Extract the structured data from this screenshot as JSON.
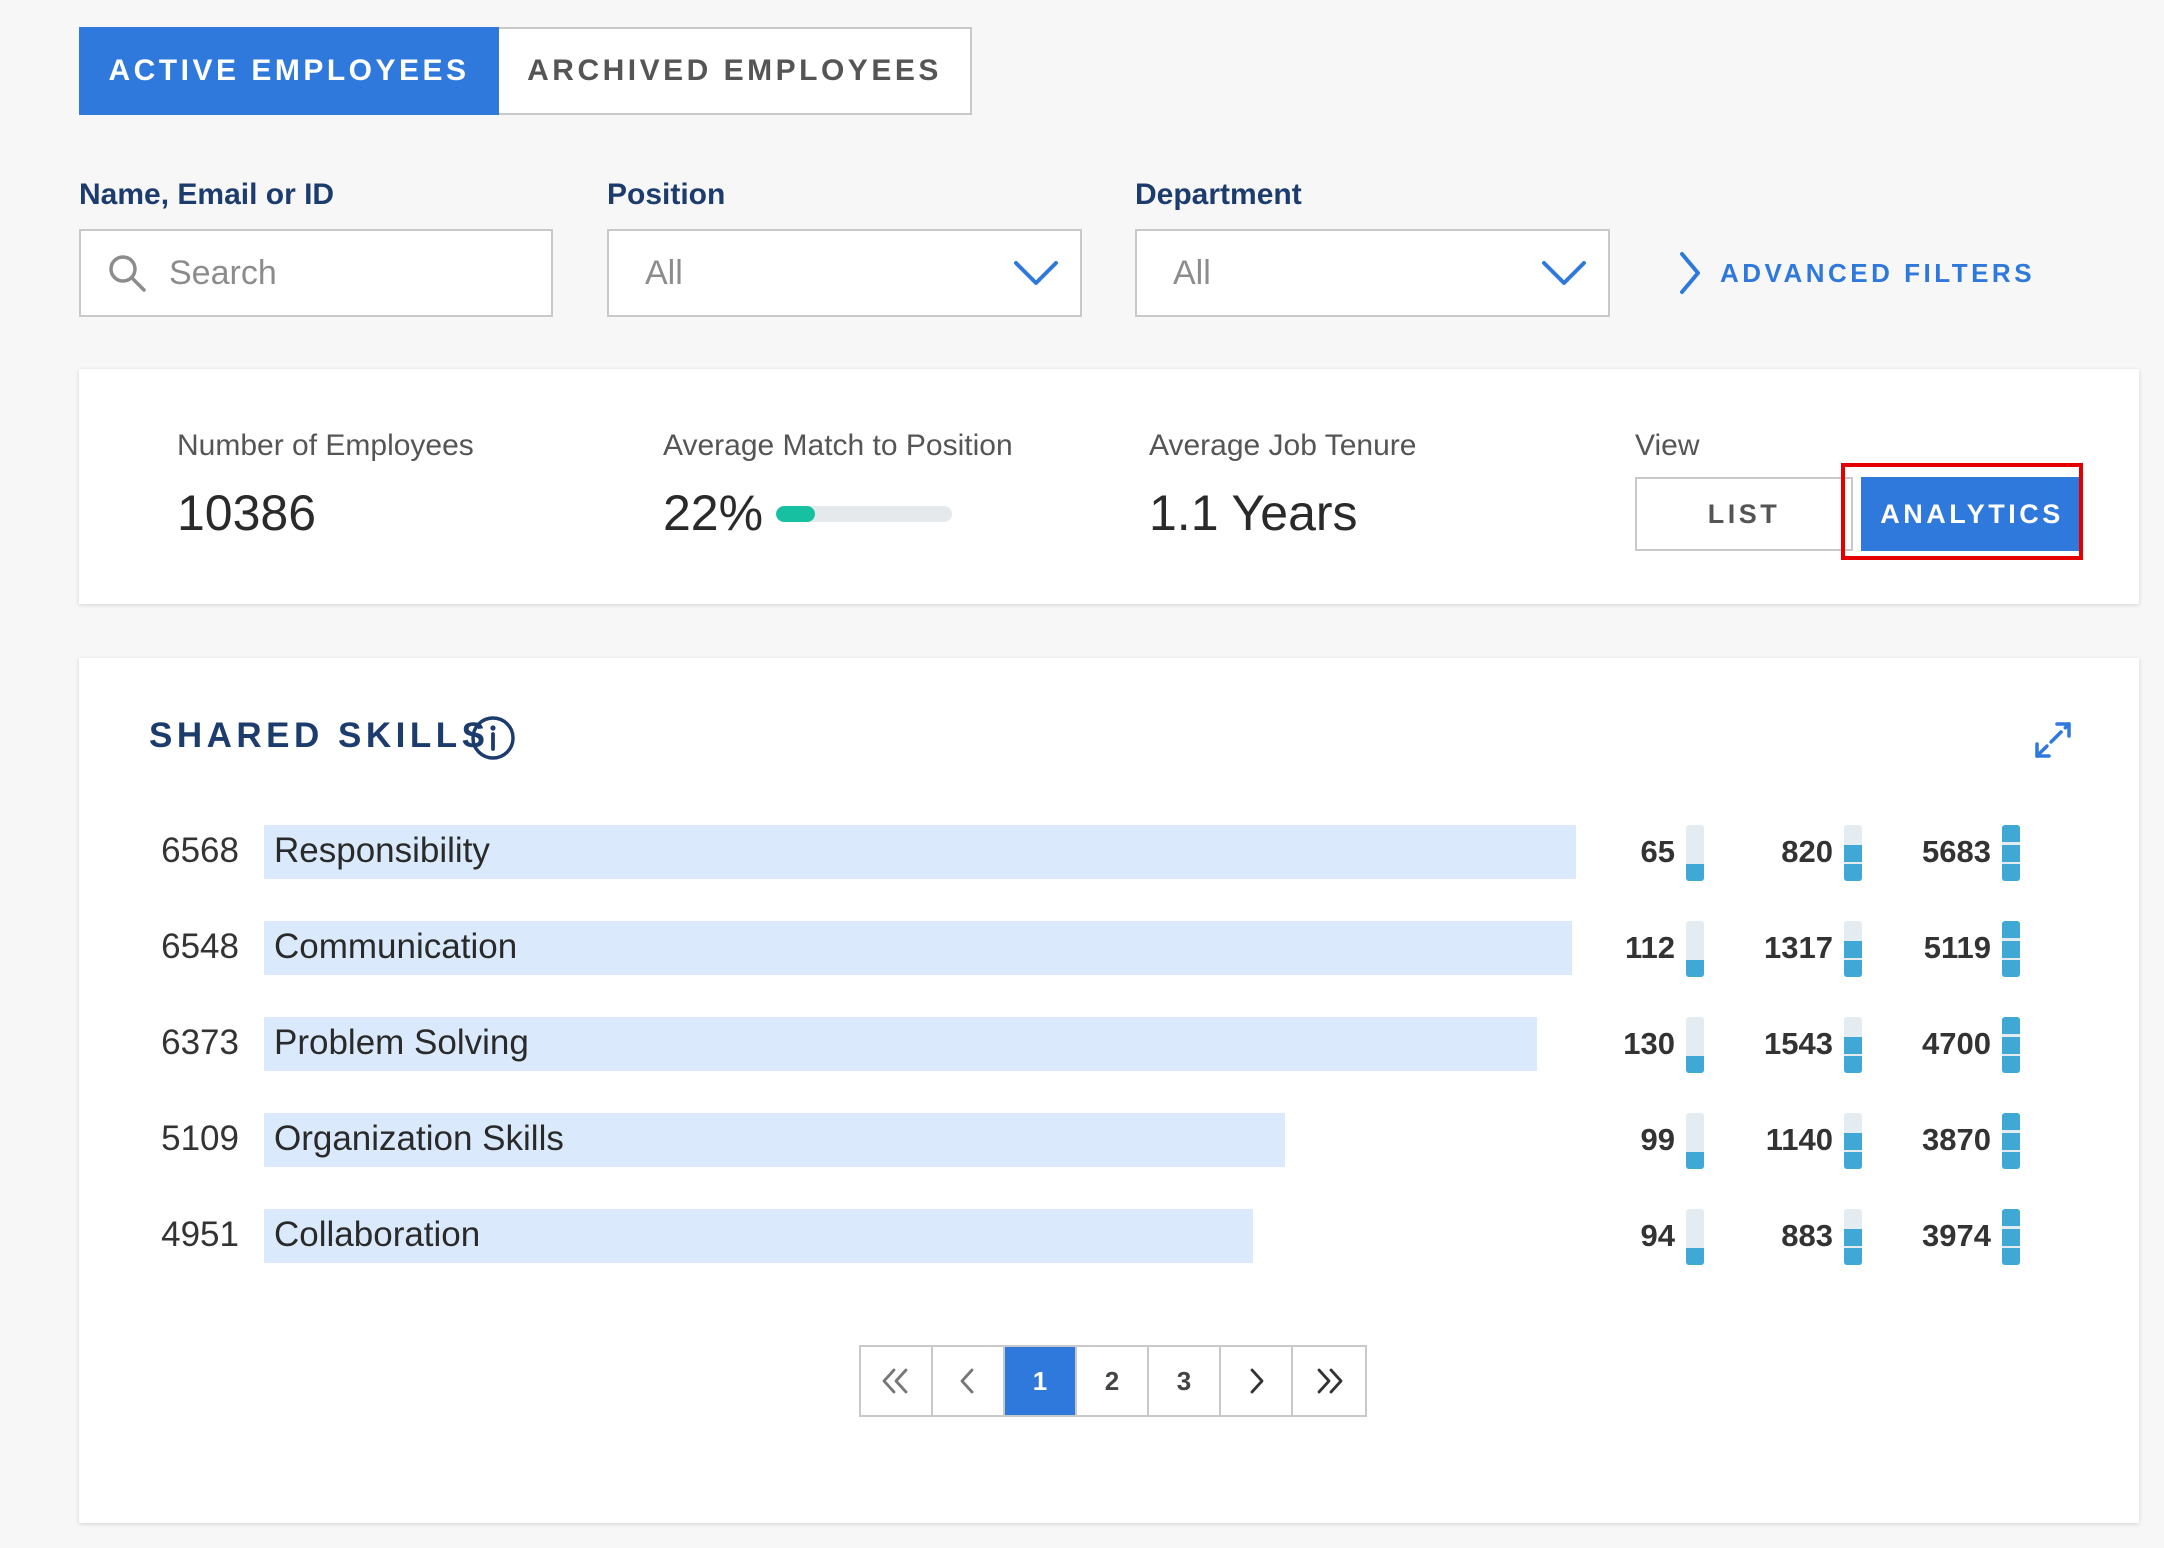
{
  "tabs": [
    {
      "label": "ACTIVE EMPLOYEES",
      "active": true
    },
    {
      "label": "ARCHIVED EMPLOYEES",
      "active": false
    }
  ],
  "filters": {
    "search": {
      "label": "Name, Email or ID",
      "placeholder": "Search"
    },
    "position": {
      "label": "Position",
      "value": "All"
    },
    "department": {
      "label": "Department",
      "value": "All"
    },
    "advanced_label": "ADVANCED FILTERS"
  },
  "stats": {
    "employees": {
      "label": "Number of Employees",
      "value": "10386"
    },
    "match": {
      "label": "Average Match to Position",
      "value": "22%",
      "fraction": 0.22
    },
    "tenure": {
      "label": "Average Job Tenure",
      "value": "1.1 Years"
    },
    "view": {
      "label": "View",
      "list_label": "LIST",
      "analytics_label": "ANALYTICS",
      "selected": "ANALYTICS"
    }
  },
  "skills": {
    "title": "SHARED SKILLS",
    "max": 6568,
    "rows": [
      {
        "count": "6568",
        "name": "Responsibility",
        "levels": [
          "65",
          "820",
          "5683"
        ]
      },
      {
        "count": "6548",
        "name": "Communication",
        "levels": [
          "112",
          "1317",
          "5119"
        ]
      },
      {
        "count": "6373",
        "name": "Problem Solving",
        "levels": [
          "130",
          "1543",
          "4700"
        ]
      },
      {
        "count": "5109",
        "name": "Organization Skills",
        "levels": [
          "99",
          "1140",
          "3870"
        ]
      },
      {
        "count": "4951",
        "name": "Collaboration",
        "levels": [
          "94",
          "883",
          "3974"
        ]
      }
    ]
  },
  "pagination": {
    "pages": [
      "1",
      "2",
      "3"
    ],
    "current": "1"
  },
  "colors": {
    "accent": "#2f78dc",
    "title": "#1d3c6e",
    "bar": "#dae9fc",
    "meter": "#3fa8d4",
    "match": "#17c0a0",
    "highlight": "#e40000"
  }
}
